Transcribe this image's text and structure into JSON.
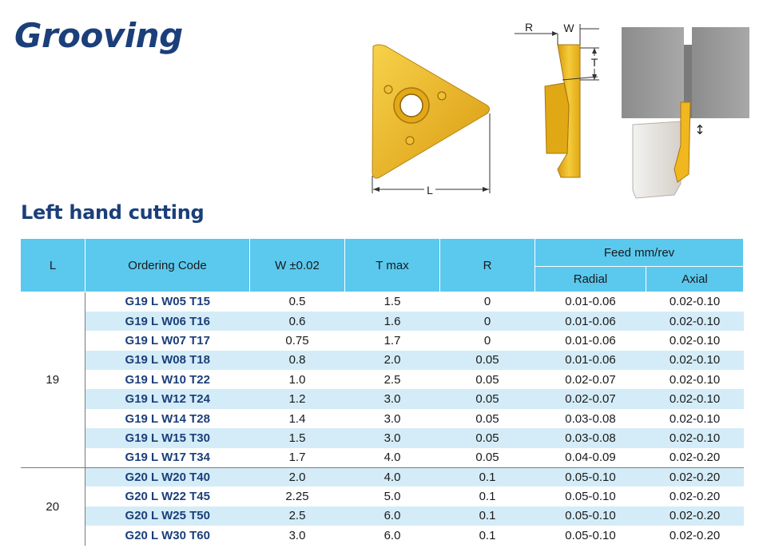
{
  "page": {
    "title": "Grooving",
    "subtitle": "Left hand cutting"
  },
  "diagrams": {
    "insert": {
      "dim_l": "L"
    },
    "profile": {
      "dim_r": "R",
      "dim_w": "W",
      "dim_t": "T"
    },
    "setup": {
      "feed_arrow": "↕"
    }
  },
  "colors": {
    "heading": "#1b3f7a",
    "header_bg": "#5bc8ee",
    "row_alt_bg": "#d4ecf7",
    "insert_gold": "#f0b81e"
  },
  "table": {
    "headers": {
      "l": "L",
      "ordering_code": "Ordering Code",
      "w": "W ±0.02",
      "tmax": "T max",
      "r": "R",
      "feed": "Feed mm/rev",
      "radial": "Radial",
      "axial": "Axial"
    },
    "groups": [
      {
        "l": "19",
        "rows": [
          {
            "code": "G19 L W05 T15",
            "w": "0.5",
            "t": "1.5",
            "r": "0",
            "radial": "0.01-0.06",
            "axial": "0.02-0.10"
          },
          {
            "code": "G19 L W06 T16",
            "w": "0.6",
            "t": "1.6",
            "r": "0",
            "radial": "0.01-0.06",
            "axial": "0.02-0.10"
          },
          {
            "code": "G19 L W07 T17",
            "w": "0.75",
            "t": "1.7",
            "r": "0",
            "radial": "0.01-0.06",
            "axial": "0.02-0.10"
          },
          {
            "code": "G19 L W08 T18",
            "w": "0.8",
            "t": "2.0",
            "r": "0.05",
            "radial": "0.01-0.06",
            "axial": "0.02-0.10"
          },
          {
            "code": "G19 L W10 T22",
            "w": "1.0",
            "t": "2.5",
            "r": "0.05",
            "radial": "0.02-0.07",
            "axial": "0.02-0.10"
          },
          {
            "code": "G19 L W12 T24",
            "w": "1.2",
            "t": "3.0",
            "r": "0.05",
            "radial": "0.02-0.07",
            "axial": "0.02-0.10"
          },
          {
            "code": "G19 L W14 T28",
            "w": "1.4",
            "t": "3.0",
            "r": "0.05",
            "radial": "0.03-0.08",
            "axial": "0.02-0.10"
          },
          {
            "code": "G19 L W15 T30",
            "w": "1.5",
            "t": "3.0",
            "r": "0.05",
            "radial": "0.03-0.08",
            "axial": "0.02-0.10"
          },
          {
            "code": "G19 L W17 T34",
            "w": "1.7",
            "t": "4.0",
            "r": "0.05",
            "radial": "0.04-0.09",
            "axial": "0.02-0.20"
          }
        ]
      },
      {
        "l": "20",
        "rows": [
          {
            "code": "G20 L W20 T40",
            "w": "2.0",
            "t": "4.0",
            "r": "0.1",
            "radial": "0.05-0.10",
            "axial": "0.02-0.20"
          },
          {
            "code": "G20 L W22 T45",
            "w": "2.25",
            "t": "5.0",
            "r": "0.1",
            "radial": "0.05-0.10",
            "axial": "0.02-0.20"
          },
          {
            "code": "G20 L W25 T50",
            "w": "2.5",
            "t": "6.0",
            "r": "0.1",
            "radial": "0.05-0.10",
            "axial": "0.02-0.20"
          },
          {
            "code": "G20 L W30 T60",
            "w": "3.0",
            "t": "6.0",
            "r": "0.1",
            "radial": "0.05-0.10",
            "axial": "0.02-0.20"
          }
        ]
      }
    ]
  }
}
